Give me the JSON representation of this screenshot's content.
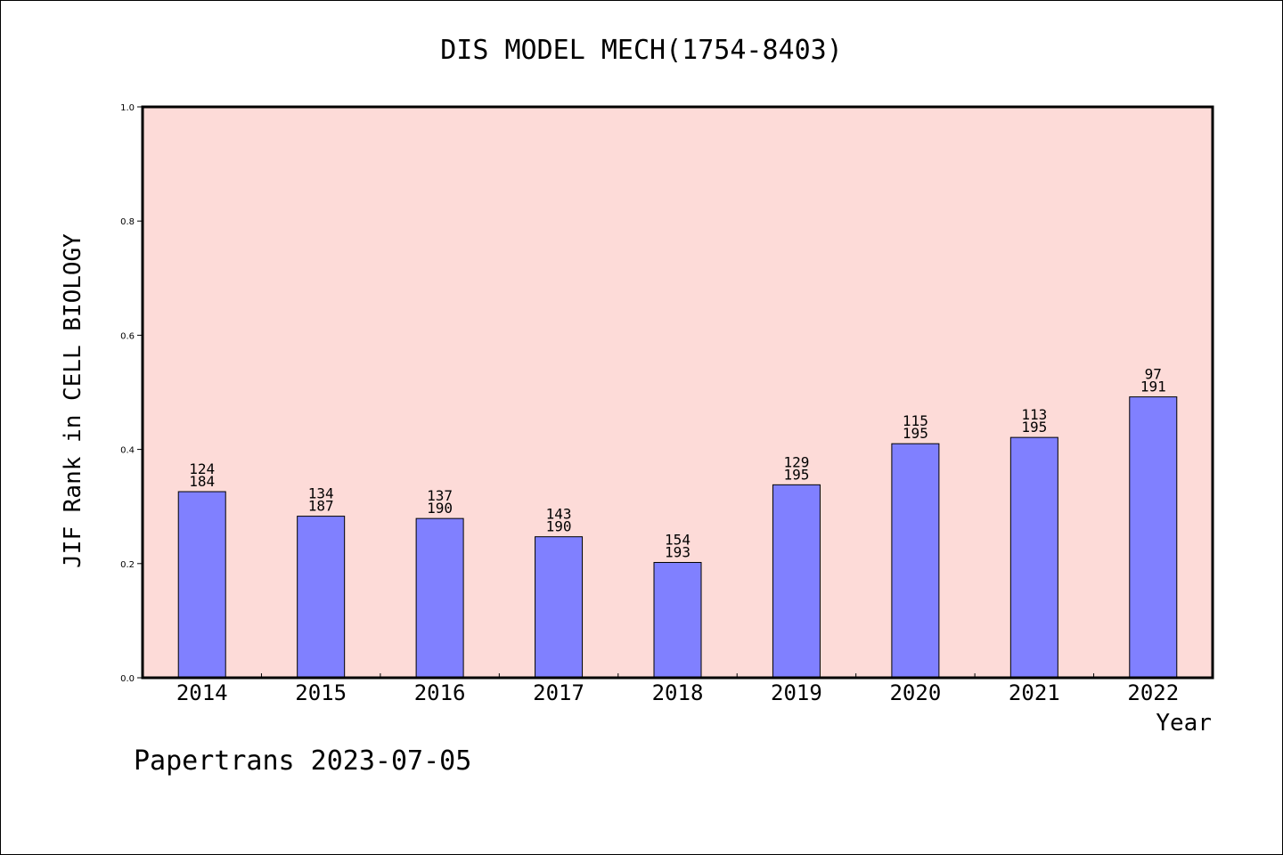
{
  "chart_data": {
    "type": "bar",
    "title": "DIS MODEL MECH(1754-8403)",
    "xlabel": "Year",
    "ylabel": "JIF Rank in CELL BIOLOGY",
    "ylim": [
      0,
      1.0
    ],
    "yticks": [
      "0.0",
      "0.2",
      "0.4",
      "0.6",
      "0.8",
      "1.0"
    ],
    "categories": [
      "2014",
      "2015",
      "2016",
      "2017",
      "2018",
      "2019",
      "2020",
      "2021",
      "2022"
    ],
    "values": [
      0.326,
      0.283,
      0.279,
      0.247,
      0.202,
      0.338,
      0.41,
      0.421,
      0.492
    ],
    "labels_top": [
      "124",
      "134",
      "137",
      "143",
      "154",
      "129",
      "115",
      "113",
      "97"
    ],
    "labels_bottom": [
      "184",
      "187",
      "190",
      "190",
      "193",
      "195",
      "195",
      "195",
      "191"
    ],
    "grid": false,
    "colors": {
      "bar": "#8080ff",
      "plot_background": "#fddbd8",
      "bar_edge": "#000000"
    }
  },
  "footer": "Papertrans 2023-07-05"
}
